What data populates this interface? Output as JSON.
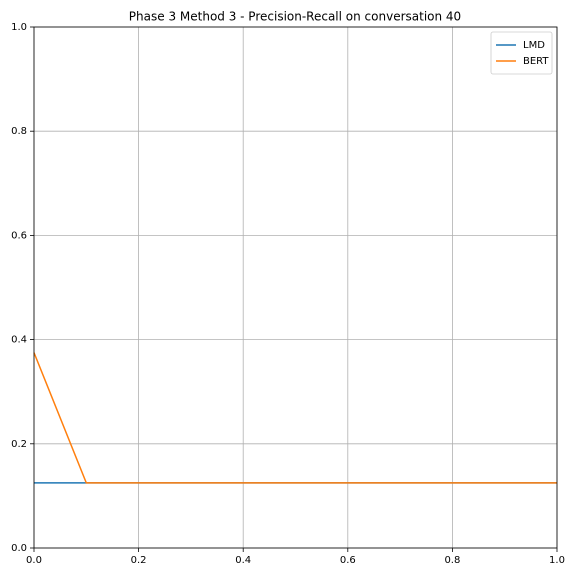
{
  "chart_data": {
    "type": "line",
    "title": "Phase 3 Method 3 - Precision-Recall on conversation 40",
    "series": [
      {
        "name": "LMD",
        "color": "#1f77b4",
        "x": [
          0,
          1
        ],
        "values": [
          0.125,
          0.125
        ]
      },
      {
        "name": "BERT",
        "color": "#ff7f0e",
        "x": [
          0,
          0.1,
          1
        ],
        "values": [
          0.375,
          0.125,
          0.125
        ]
      }
    ],
    "xlim": [
      0,
      1
    ],
    "ylim": [
      0,
      1
    ],
    "xticks": [
      {
        "value": 0,
        "label": "0.0"
      },
      0.2,
      0.4,
      0.6,
      0.8,
      {
        "value": 1,
        "label": "1.0"
      }
    ],
    "yticks": [
      {
        "value": 0,
        "label": "0.0"
      },
      0.2,
      0.4,
      0.6,
      0.8,
      {
        "value": 1,
        "label": "1.0"
      }
    ],
    "grid": true,
    "legend": "upper right"
  }
}
